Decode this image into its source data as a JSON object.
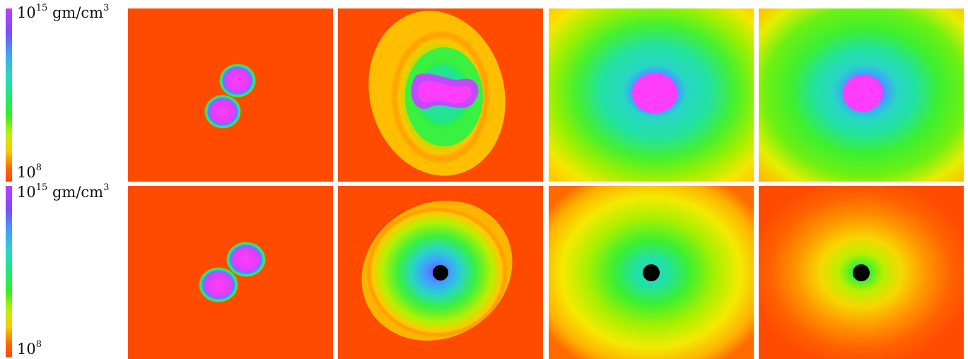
{
  "colorbars": [
    {
      "max_base": "10",
      "max_exp": "15",
      "unit_base": "gm/cm",
      "unit_exp": "3",
      "min_base": "10",
      "min_exp": "8"
    },
    {
      "max_base": "10",
      "max_exp": "15",
      "unit_base": "gm/cm",
      "unit_exp": "3",
      "min_base": "10",
      "min_exp": "8"
    }
  ],
  "colorscale": [
    "#c23bff",
    "#7a4bff",
    "#3fa0ff",
    "#28d6c6",
    "#19ea7a",
    "#30f020",
    "#b9f200",
    "#f6cf00",
    "#ff6a00",
    "#ff4800"
  ],
  "panel_grid": {
    "rows": 2,
    "columns": 4
  },
  "black_hole_color": "#000000"
}
